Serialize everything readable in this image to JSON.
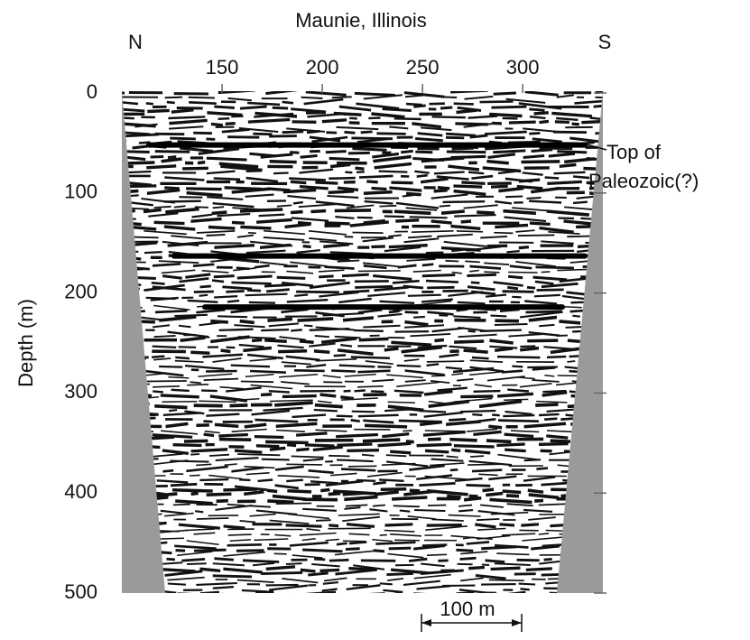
{
  "chart_data": {
    "type": "seismic",
    "title": "Maunie, Illinois",
    "left_label": "N",
    "right_label": "S",
    "y_label": "Depth (m)",
    "xlim": [
      100,
      340
    ],
    "xticks": [
      150,
      200,
      250,
      300
    ],
    "ylim": [
      0,
      500
    ],
    "yticks": [
      0,
      100,
      200,
      300,
      400,
      500
    ],
    "horizons": [
      52,
      163,
      214
    ],
    "annotation": "Top of\nPaleozoic(?)",
    "scale_bar": "100 m"
  }
}
